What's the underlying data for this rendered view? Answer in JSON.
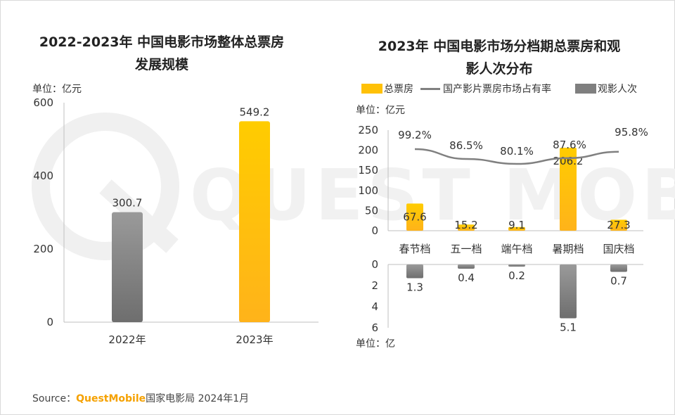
{
  "left": {
    "title_line1": "2022-2023年 中国电影市场整体总票房",
    "title_line2": "发展规模",
    "unit": "单位：亿元"
  },
  "right": {
    "title_line1": "2023年 中国电影市场分档期总票房和观",
    "title_line2": "影人次分布",
    "unit_top": "单位：亿元",
    "unit_bottom": "单位：亿",
    "legend": {
      "box_office": "总票房",
      "share": "国产影片票房市场占有率",
      "admissions": "观影人次"
    }
  },
  "source": {
    "prefix": "Source：",
    "brand": "QuestMobile",
    "rest": "国家电影局 2024年1月"
  },
  "colors": {
    "gold": "#ffc107",
    "gray_bar": "#7f7f7f",
    "line": "#808080"
  },
  "chart_data": [
    {
      "type": "bar",
      "title": "2022-2023年 中国电影市场整体总票房发展规模",
      "ylabel": "单位：亿元",
      "categories": [
        "2022年",
        "2023年"
      ],
      "values": [
        300.7,
        549.2
      ],
      "value_labels": [
        "300.7",
        "549.2"
      ],
      "ylim": [
        0,
        600
      ],
      "yticks": [
        0,
        200,
        400,
        600
      ],
      "bar_colors": [
        "#7f7f7f",
        "#ffc107"
      ]
    },
    {
      "type": "bar",
      "title": "2023年 中国电影市场分档期总票房和观影人次分布",
      "categories": [
        "春节档",
        "五一档",
        "端午档",
        "暑期档",
        "国庆档"
      ],
      "series": [
        {
          "name": "总票房",
          "values": [
            67.6,
            15.2,
            9.1,
            206.2,
            27.3
          ],
          "labels": [
            "67.6",
            "15.2",
            "9.1",
            "206.2",
            "27.3"
          ],
          "unit": "亿元",
          "ylim": [
            0,
            250
          ],
          "yticks": [
            0,
            50,
            100,
            150,
            200,
            250
          ]
        },
        {
          "name": "国产影片票房市场占有率",
          "type": "line",
          "values": [
            99.2,
            86.5,
            80.1,
            87.6,
            95.8
          ],
          "labels": [
            "99.2%",
            "86.5%",
            "80.1%",
            "87.6%",
            "95.8%"
          ],
          "unit": "%"
        },
        {
          "name": "观影人次",
          "values": [
            1.3,
            0.4,
            0.2,
            5.1,
            0.7
          ],
          "labels": [
            "1.3",
            "0.4",
            "0.2",
            "5.1",
            "0.7"
          ],
          "unit": "亿",
          "ylim": [
            0,
            6
          ],
          "yticks": [
            0,
            2,
            4,
            6
          ],
          "inverted": true
        }
      ]
    }
  ]
}
